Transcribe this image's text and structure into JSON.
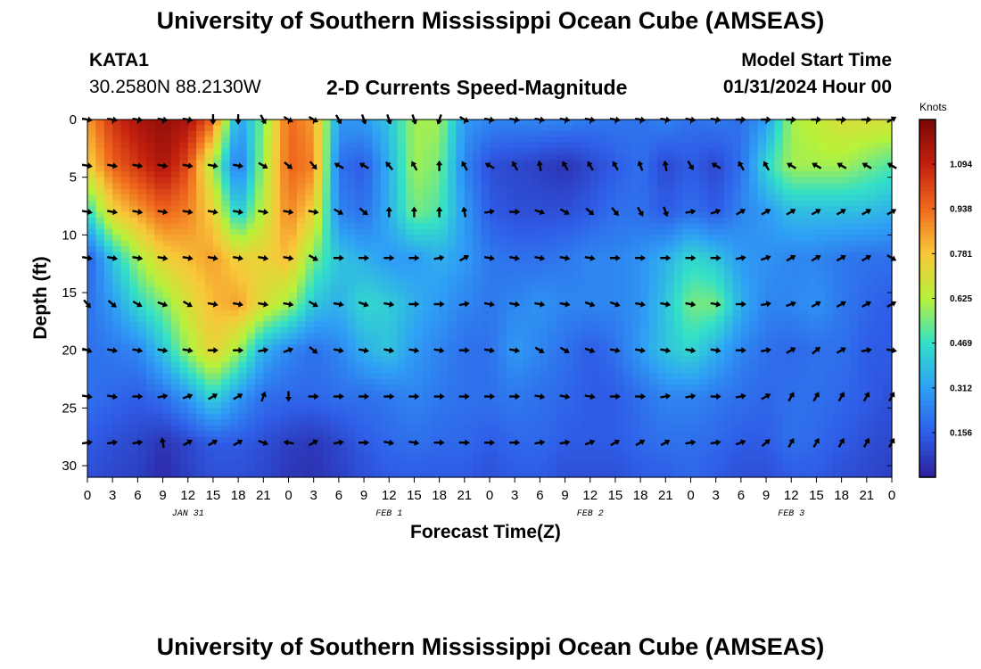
{
  "page": {
    "title": "University of Southern Mississippi Ocean Cube (AMSEAS)",
    "footer_title": "University of Southern Mississippi Ocean Cube (AMSEAS)",
    "station": "KATA1",
    "location": "30.2580N  88.2130W",
    "model_start_label": "Model Start Time",
    "model_start_value": "01/31/2024 Hour 00"
  },
  "chart_data": {
    "type": "heatmap",
    "title": "2-D Currents Speed-Magnitude",
    "xlabel": "Forecast Time(Z)",
    "ylabel": "Depth (ft)",
    "x_ticks": [
      "0",
      "3",
      "6",
      "9",
      "12",
      "15",
      "18",
      "21",
      "0",
      "3",
      "6",
      "9",
      "12",
      "15",
      "18",
      "21",
      "0",
      "3",
      "6",
      "9",
      "12",
      "15",
      "18",
      "21",
      "0",
      "3",
      "6",
      "9",
      "12",
      "15",
      "18",
      "21",
      "0"
    ],
    "y_ticks": [
      "0",
      "5",
      "10",
      "15",
      "20",
      "25",
      "30"
    ],
    "day_labels": [
      {
        "label": "JAN 31",
        "hour": 12
      },
      {
        "label": "FEB 1",
        "hour": 36
      },
      {
        "label": "FEB 2",
        "hour": 60
      },
      {
        "label": "FEB 3",
        "hour": 84
      }
    ],
    "xlim": [
      0,
      96
    ],
    "ylim": [
      0,
      31
    ],
    "colorbar": {
      "unit": "Knots",
      "ticks": [
        "1.094",
        "0.938",
        "0.781",
        "0.625",
        "0.469",
        "0.312",
        "0.156"
      ],
      "tick_values": [
        1.094,
        0.938,
        0.781,
        0.625,
        0.469,
        0.312,
        0.156
      ],
      "range": [
        0,
        1.25
      ],
      "colors": [
        "#2b1f9a",
        "#2f5ee8",
        "#2fa0f5",
        "#33e0c8",
        "#b8f23a",
        "#f8c83a",
        "#f06a1e",
        "#c4200f",
        "#7a0606"
      ]
    },
    "speed_control_points": {
      "hours": [
        0,
        3,
        6,
        9,
        12,
        15,
        18,
        21,
        24,
        27,
        30,
        33,
        36,
        39,
        42,
        45,
        48,
        51,
        54,
        57,
        60,
        63,
        66,
        69,
        72,
        75,
        78,
        81,
        84,
        87,
        90,
        93,
        96
      ],
      "depths_ft": [
        0,
        4,
        8,
        12,
        16,
        20,
        24,
        28,
        31
      ],
      "speed_knots": [
        [
          0.85,
          1.05,
          1.15,
          1.2,
          1.15,
          0.95,
          0.3,
          0.55,
          0.95,
          0.85,
          0.3,
          0.3,
          0.4,
          0.6,
          0.6,
          0.3,
          0.25,
          0.25,
          0.25,
          0.25,
          0.22,
          0.22,
          0.2,
          0.25,
          0.2,
          0.22,
          0.2,
          0.3,
          0.6,
          0.65,
          0.7,
          0.7,
          0.7
        ],
        [
          0.75,
          0.95,
          1.05,
          1.15,
          1.0,
          0.6,
          0.2,
          0.6,
          0.95,
          0.9,
          0.2,
          0.15,
          0.35,
          0.6,
          0.55,
          0.25,
          0.12,
          0.1,
          0.08,
          0.05,
          0.1,
          0.15,
          0.2,
          0.1,
          0.15,
          0.1,
          0.2,
          0.45,
          0.6,
          0.6,
          0.6,
          0.55,
          0.5
        ],
        [
          0.45,
          0.75,
          0.85,
          0.95,
          0.9,
          0.75,
          0.4,
          0.65,
          0.9,
          0.75,
          0.25,
          0.2,
          0.35,
          0.55,
          0.5,
          0.3,
          0.15,
          0.12,
          0.12,
          0.12,
          0.15,
          0.2,
          0.2,
          0.15,
          0.2,
          0.15,
          0.25,
          0.3,
          0.38,
          0.38,
          0.38,
          0.38,
          0.35
        ],
        [
          0.15,
          0.4,
          0.6,
          0.75,
          0.8,
          0.85,
          0.75,
          0.75,
          0.8,
          0.55,
          0.4,
          0.35,
          0.3,
          0.3,
          0.35,
          0.3,
          0.22,
          0.2,
          0.2,
          0.22,
          0.25,
          0.25,
          0.28,
          0.35,
          0.45,
          0.4,
          0.3,
          0.28,
          0.25,
          0.25,
          0.22,
          0.2,
          0.2
        ],
        [
          0.2,
          0.3,
          0.45,
          0.55,
          0.7,
          0.8,
          0.85,
          0.7,
          0.6,
          0.4,
          0.35,
          0.45,
          0.42,
          0.35,
          0.3,
          0.25,
          0.22,
          0.25,
          0.28,
          0.25,
          0.25,
          0.25,
          0.28,
          0.4,
          0.55,
          0.55,
          0.35,
          0.25,
          0.25,
          0.28,
          0.22,
          0.18,
          0.15
        ],
        [
          0.2,
          0.22,
          0.25,
          0.4,
          0.6,
          0.75,
          0.6,
          0.35,
          0.25,
          0.2,
          0.25,
          0.35,
          0.4,
          0.3,
          0.25,
          0.2,
          0.2,
          0.3,
          0.25,
          0.2,
          0.15,
          0.2,
          0.3,
          0.4,
          0.45,
          0.35,
          0.25,
          0.2,
          0.18,
          0.2,
          0.2,
          0.15,
          0.15
        ],
        [
          0.2,
          0.18,
          0.15,
          0.2,
          0.3,
          0.45,
          0.3,
          0.2,
          0.18,
          0.18,
          0.2,
          0.2,
          0.22,
          0.25,
          0.22,
          0.2,
          0.2,
          0.22,
          0.2,
          0.18,
          0.15,
          0.15,
          0.2,
          0.25,
          0.25,
          0.22,
          0.2,
          0.18,
          0.2,
          0.2,
          0.18,
          0.15,
          0.12
        ],
        [
          0.15,
          0.12,
          0.1,
          0.05,
          0.1,
          0.15,
          0.15,
          0.12,
          0.08,
          0.06,
          0.1,
          0.15,
          0.18,
          0.2,
          0.18,
          0.18,
          0.15,
          0.18,
          0.18,
          0.15,
          0.15,
          0.15,
          0.18,
          0.2,
          0.2,
          0.18,
          0.15,
          0.15,
          0.2,
          0.18,
          0.15,
          0.12,
          0.1
        ],
        [
          0.12,
          0.1,
          0.08,
          0.03,
          0.08,
          0.12,
          0.12,
          0.1,
          0.06,
          0.05,
          0.08,
          0.12,
          0.15,
          0.15,
          0.15,
          0.15,
          0.12,
          0.15,
          0.15,
          0.12,
          0.12,
          0.12,
          0.15,
          0.15,
          0.18,
          0.15,
          0.12,
          0.12,
          0.15,
          0.15,
          0.12,
          0.1,
          0.08
        ]
      ]
    },
    "vectors": {
      "hours": [
        0,
        3,
        6,
        9,
        12,
        15,
        18,
        21,
        24,
        27,
        30,
        33,
        36,
        39,
        42,
        45,
        48,
        51,
        54,
        57,
        60,
        63,
        66,
        69,
        72,
        75,
        78,
        81,
        84,
        87,
        90,
        93,
        96
      ],
      "depths_ft": [
        0,
        4,
        8,
        12,
        16,
        20,
        24,
        28
      ],
      "direction_deg": [
        [
          100,
          100,
          100,
          100,
          100,
          180,
          180,
          150,
          120,
          120,
          150,
          160,
          160,
          160,
          200,
          120,
          100,
          100,
          100,
          100,
          100,
          100,
          100,
          100,
          100,
          100,
          90,
          90,
          90,
          90,
          90,
          90,
          60
        ],
        [
          100,
          100,
          100,
          100,
          100,
          100,
          100,
          120,
          130,
          140,
          300,
          300,
          320,
          330,
          0,
          330,
          300,
          330,
          350,
          330,
          330,
          330,
          340,
          350,
          150,
          300,
          330,
          330,
          300,
          300,
          300,
          300,
          300
        ],
        [
          100,
          100,
          100,
          100,
          100,
          100,
          100,
          100,
          100,
          100,
          120,
          130,
          0,
          0,
          0,
          350,
          80,
          90,
          110,
          120,
          130,
          140,
          150,
          160,
          80,
          70,
          60,
          60,
          60,
          60,
          60,
          60,
          60
        ],
        [
          100,
          100,
          100,
          100,
          100,
          100,
          100,
          100,
          100,
          120,
          90,
          90,
          90,
          90,
          80,
          60,
          100,
          100,
          100,
          100,
          100,
          90,
          90,
          90,
          90,
          90,
          80,
          70,
          60,
          60,
          60,
          60,
          120
        ],
        [
          140,
          130,
          120,
          110,
          120,
          100,
          100,
          100,
          100,
          120,
          100,
          110,
          100,
          90,
          90,
          80,
          100,
          100,
          100,
          100,
          110,
          110,
          100,
          100,
          100,
          100,
          90,
          80,
          70,
          60,
          60,
          60,
          60
        ],
        [
          110,
          100,
          100,
          100,
          100,
          90,
          90,
          80,
          70,
          130,
          100,
          100,
          100,
          100,
          100,
          90,
          100,
          100,
          120,
          120,
          110,
          100,
          100,
          100,
          100,
          100,
          90,
          80,
          60,
          50,
          60,
          80,
          100
        ],
        [
          100,
          100,
          90,
          80,
          70,
          60,
          60,
          20,
          180,
          90,
          90,
          90,
          90,
          90,
          90,
          90,
          90,
          90,
          100,
          100,
          100,
          90,
          90,
          80,
          80,
          90,
          80,
          60,
          30,
          30,
          30,
          30,
          30
        ],
        [
          80,
          80,
          80,
          350,
          60,
          60,
          60,
          110,
          280,
          60,
          80,
          90,
          100,
          100,
          90,
          90,
          90,
          90,
          80,
          80,
          70,
          60,
          60,
          60,
          80,
          80,
          70,
          50,
          30,
          30,
          30,
          30,
          30
        ]
      ]
    }
  }
}
